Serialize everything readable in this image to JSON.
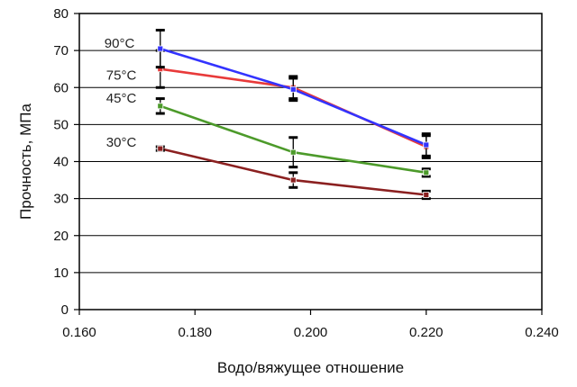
{
  "chart_data": {
    "type": "line",
    "title": "",
    "xlabel": "Водо/вяжущее отношение",
    "ylabel": "Прочность, МПа",
    "xlim": [
      0.16,
      0.24
    ],
    "ylim": [
      0,
      80
    ],
    "x_ticks": [
      "0.160",
      "0.180",
      "0.200",
      "0.220",
      "0.240"
    ],
    "y_ticks": [
      "0",
      "10",
      "20",
      "30",
      "40",
      "50",
      "60",
      "70",
      "80"
    ],
    "grid": "horizontal",
    "legend": "none",
    "x": [
      0.174,
      0.197,
      0.22
    ],
    "series": [
      {
        "name": "90°C",
        "color": "#3333ff",
        "values": [
          70.5,
          59.5,
          44.5
        ],
        "error": [
          5,
          3,
          3
        ]
      },
      {
        "name": "75°C",
        "color": "#e83a3a",
        "values": [
          65,
          60,
          44
        ],
        "error": [
          5,
          3,
          3
        ]
      },
      {
        "name": "45°C",
        "color": "#4c9a2a",
        "values": [
          55,
          42.5,
          37
        ],
        "error": [
          2,
          4,
          1
        ]
      },
      {
        "name": "30°C",
        "color": "#8b2020",
        "values": [
          43.5,
          35,
          31
        ],
        "error": [
          0.5,
          2,
          1
        ]
      }
    ]
  }
}
